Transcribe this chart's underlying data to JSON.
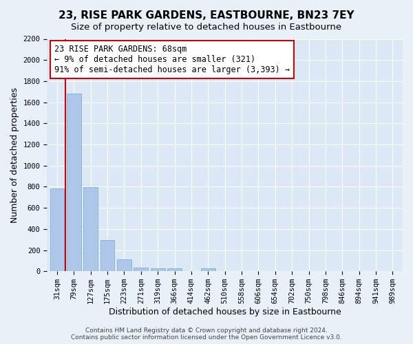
{
  "title": "23, RISE PARK GARDENS, EASTBOURNE, BN23 7EY",
  "subtitle": "Size of property relative to detached houses in Eastbourne",
  "xlabel": "Distribution of detached houses by size in Eastbourne",
  "ylabel": "Number of detached properties",
  "bar_labels": [
    "31sqm",
    "79sqm",
    "127sqm",
    "175sqm",
    "223sqm",
    "271sqm",
    "319sqm",
    "366sqm",
    "414sqm",
    "462sqm",
    "510sqm",
    "558sqm",
    "606sqm",
    "654sqm",
    "702sqm",
    "750sqm",
    "798sqm",
    "846sqm",
    "894sqm",
    "941sqm",
    "989sqm"
  ],
  "bar_values": [
    780,
    1680,
    795,
    295,
    110,
    35,
    25,
    25,
    0,
    30,
    0,
    0,
    0,
    0,
    0,
    0,
    0,
    0,
    0,
    0,
    0
  ],
  "bar_color": "#aec6e8",
  "bar_edge_color": "#7bafd4",
  "marker_line_color": "#cc0000",
  "annotation_box_color": "#cc0000",
  "annotation_text_line1": "23 RISE PARK GARDENS: 68sqm",
  "annotation_text_line2": "← 9% of detached houses are smaller (321)",
  "annotation_text_line3": "91% of semi-detached houses are larger (3,393) →",
  "ylim": [
    0,
    2200
  ],
  "yticks": [
    0,
    200,
    400,
    600,
    800,
    1000,
    1200,
    1400,
    1600,
    1800,
    2000,
    2200
  ],
  "footer_line1": "Contains HM Land Registry data © Crown copyright and database right 2024.",
  "footer_line2": "Contains public sector information licensed under the Open Government Licence v3.0.",
  "bg_color": "#e8f0f8",
  "plot_bg_color": "#dce8f5",
  "title_fontsize": 11,
  "subtitle_fontsize": 9.5,
  "axis_label_fontsize": 9,
  "tick_fontsize": 7.5,
  "annotation_fontsize": 8.5,
  "footer_fontsize": 6.5
}
